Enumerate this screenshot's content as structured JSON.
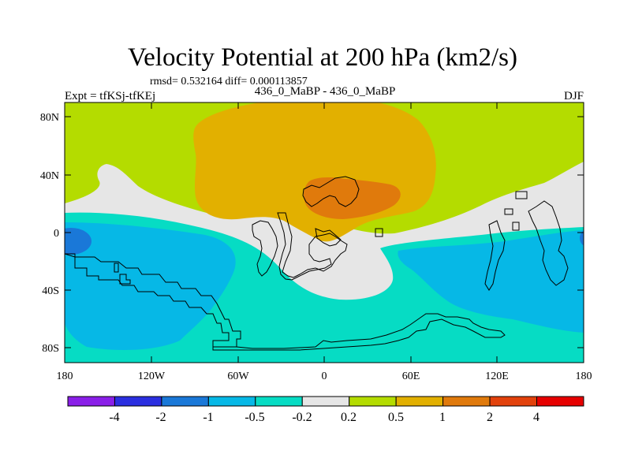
{
  "title": "Velocity Potential at 200 hPa (km2/s)",
  "stats": "rmsd= 0.532164 diff= 0.000113857",
  "left_label": "Expt = tfKSj-tfKEj",
  "center_label": "436_0_MaBP - 436_0_MaBP",
  "right_label": "DJF",
  "lat_ticks": [
    "80N",
    "40N",
    "0",
    "40S",
    "80S"
  ],
  "lon_ticks": [
    "180",
    "120W",
    "60W",
    "0",
    "60E",
    "120E",
    "180"
  ],
  "colorbar": {
    "labels": [
      "-4",
      "-2",
      "-1",
      "-0.5",
      "-0.2",
      "0.2",
      "0.5",
      "1",
      "2",
      "4"
    ],
    "colors": [
      "#8a1fe8",
      "#2b2fe0",
      "#1a78d8",
      "#06b8e6",
      "#06dcc4",
      "#e6e6e6",
      "#b4dc00",
      "#e2b000",
      "#e07a0c",
      "#e2420c",
      "#e60000"
    ]
  },
  "chart_data": {
    "type": "heatmap",
    "title": "Velocity Potential at 200 hPa (km2/s)",
    "variable": "Velocity Potential at 200 hPa",
    "units": "km2/s",
    "season": "DJF",
    "experiment": "tfKSj-tfKEj",
    "lon_range": [
      -180,
      180
    ],
    "lat_range": [
      -90,
      90
    ],
    "contour_levels": [
      -4,
      -2,
      -1,
      -0.5,
      -0.2,
      0.2,
      0.5,
      1,
      2,
      4
    ]
  }
}
